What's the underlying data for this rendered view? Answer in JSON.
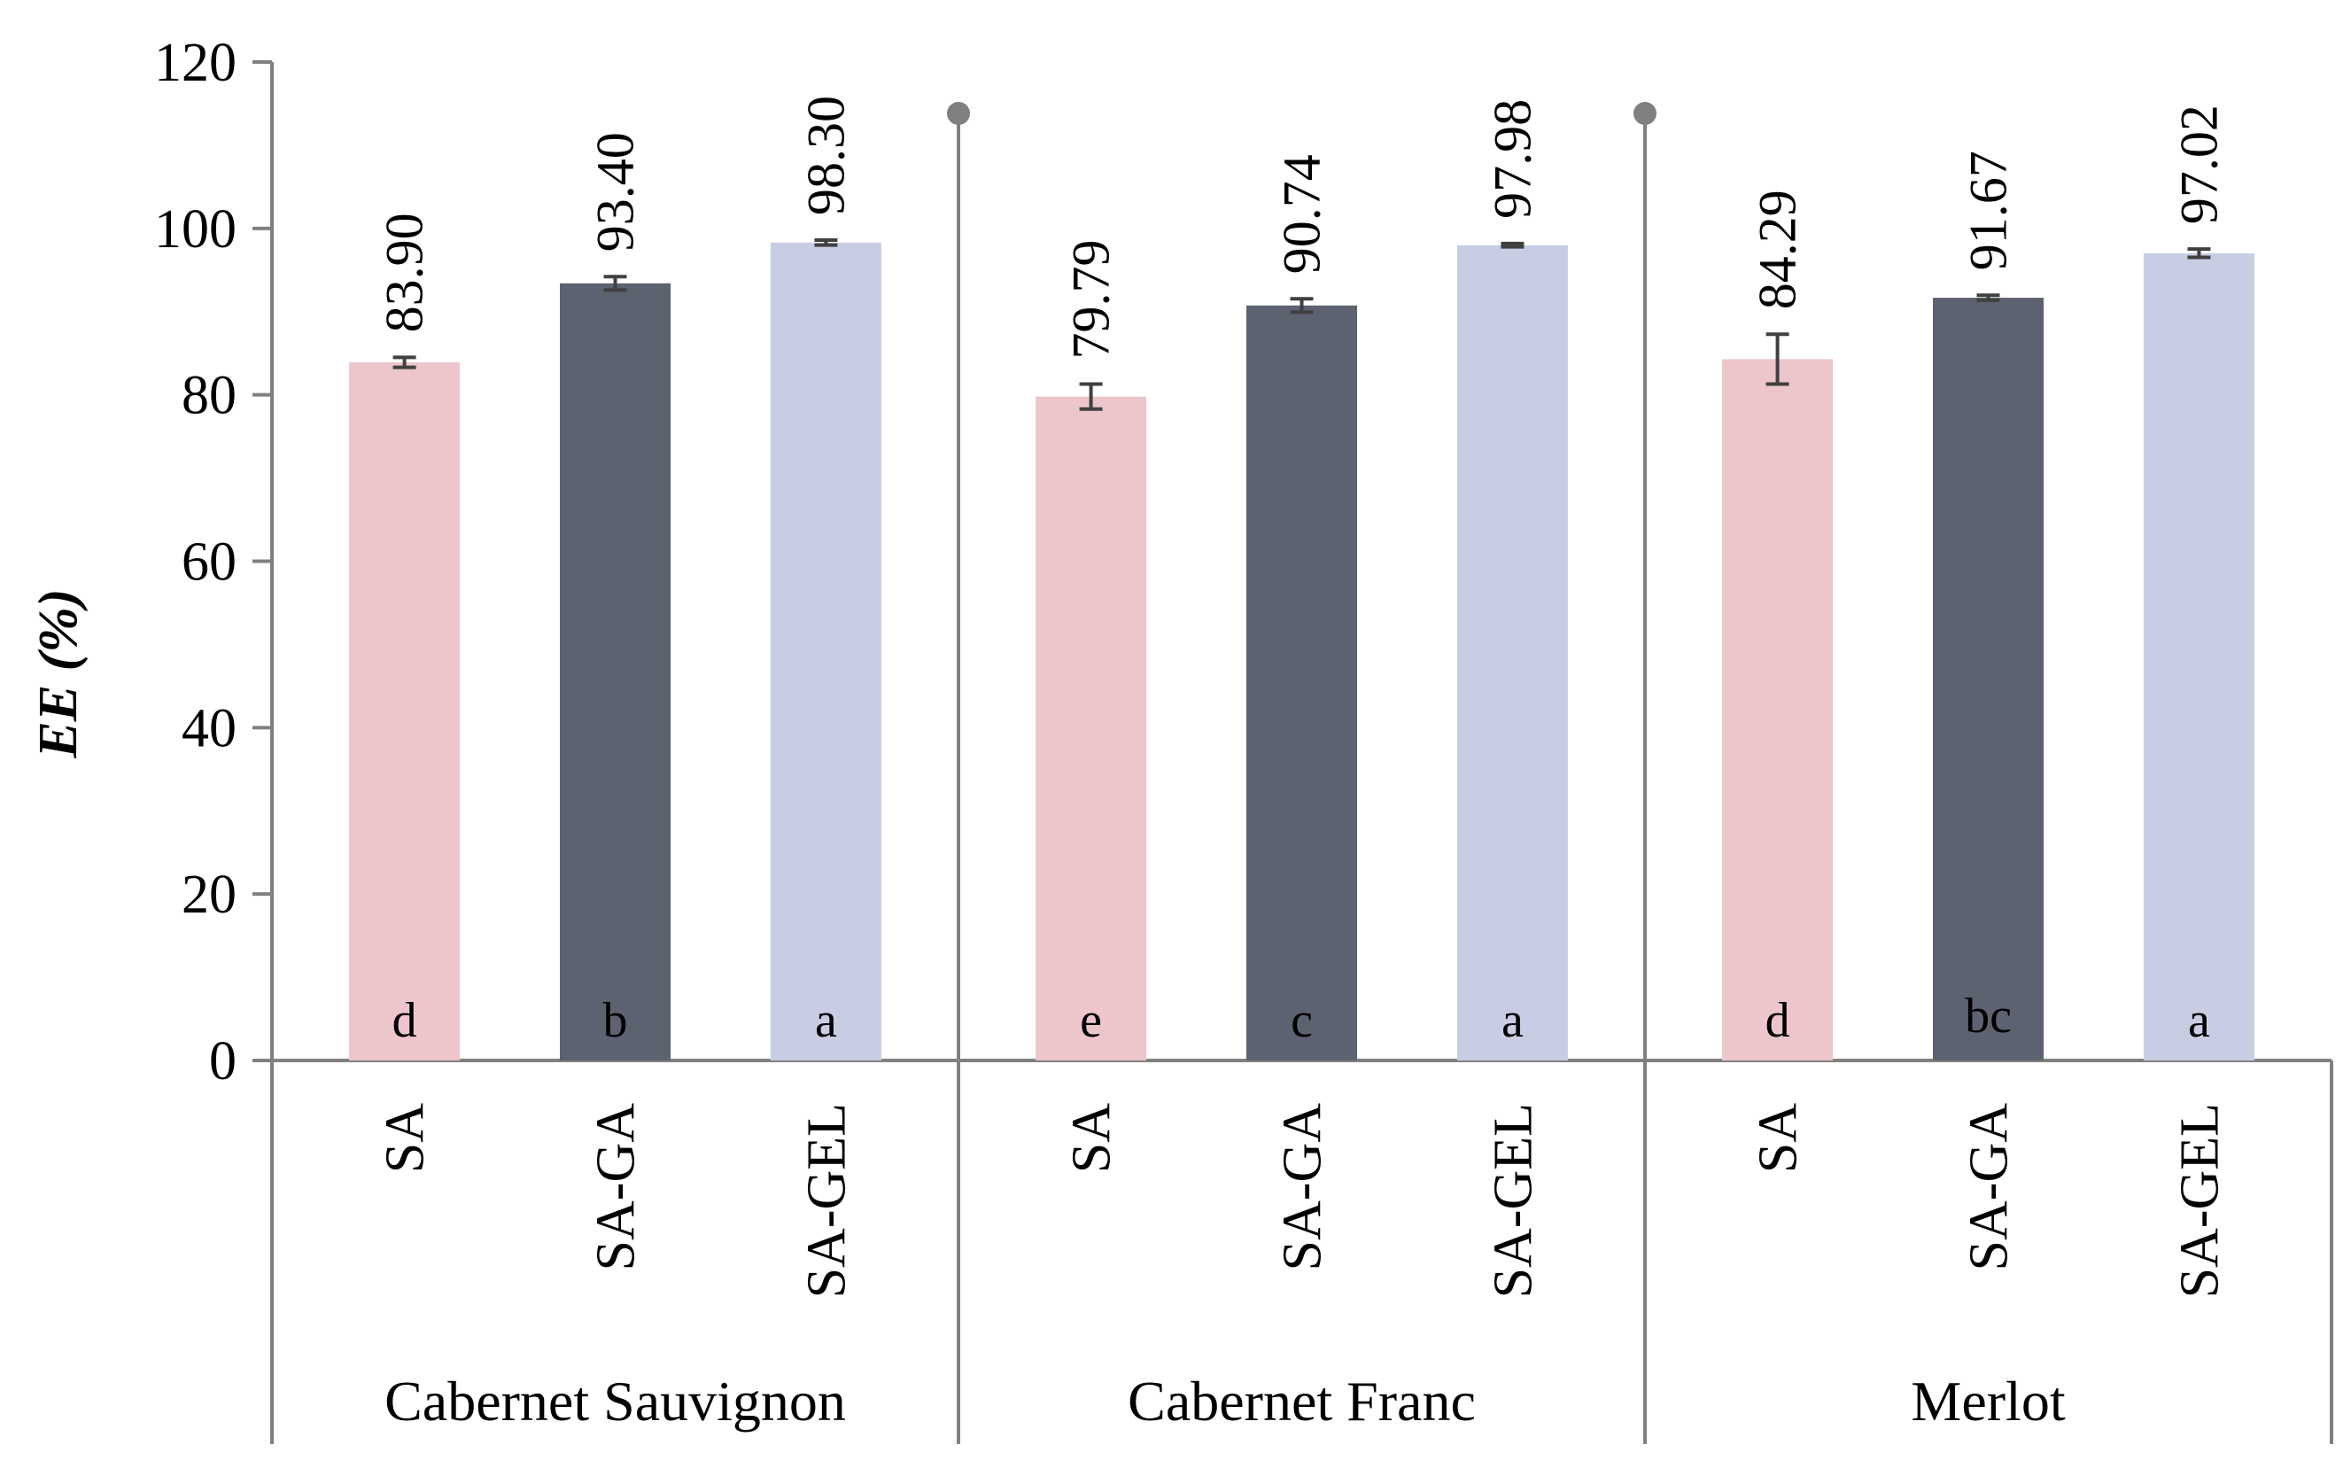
{
  "chart_data": {
    "type": "bar",
    "ylabel": "EE (%)",
    "ylim": [
      0,
      120
    ],
    "yticks": [
      0,
      20,
      40,
      60,
      80,
      100,
      120
    ],
    "grid": false,
    "legend": "none",
    "groups": [
      {
        "name": "Cabernet Sauvignon",
        "bars": [
          {
            "category": "SA",
            "value": 83.9,
            "label": "83.90",
            "error": 0.6,
            "letter": "d",
            "color": "#ecc6cb"
          },
          {
            "category": "SA-GA",
            "value": 93.4,
            "label": "93.40",
            "error": 0.8,
            "letter": "b",
            "color": "#5d6270"
          },
          {
            "category": "SA-GEL",
            "value": 98.3,
            "label": "98.30",
            "error": 0.3,
            "letter": "a",
            "color": "#c9cde4"
          }
        ]
      },
      {
        "name": "Cabernet Franc",
        "bars": [
          {
            "category": "SA",
            "value": 79.79,
            "label": "79.79",
            "error": 1.5,
            "letter": "e",
            "color": "#ecc6cb"
          },
          {
            "category": "SA-GA",
            "value": 90.74,
            "label": "90.74",
            "error": 0.8,
            "letter": "c",
            "color": "#5d6270"
          },
          {
            "category": "SA-GEL",
            "value": 97.98,
            "label": "97.98",
            "error": 0.2,
            "letter": "a",
            "color": "#c9cde4"
          }
        ]
      },
      {
        "name": "Merlot",
        "bars": [
          {
            "category": "SA",
            "value": 84.29,
            "label": "84.29",
            "error": 3.0,
            "letter": "d",
            "color": "#ecc6cb"
          },
          {
            "category": "SA-GA",
            "value": 91.67,
            "label": "91.67",
            "error": 0.3,
            "letter": "bc",
            "color": "#5d6270"
          },
          {
            "category": "SA-GEL",
            "value": 97.02,
            "label": "97.02",
            "error": 0.5,
            "letter": "a",
            "color": "#c9cde4"
          }
        ]
      }
    ]
  }
}
